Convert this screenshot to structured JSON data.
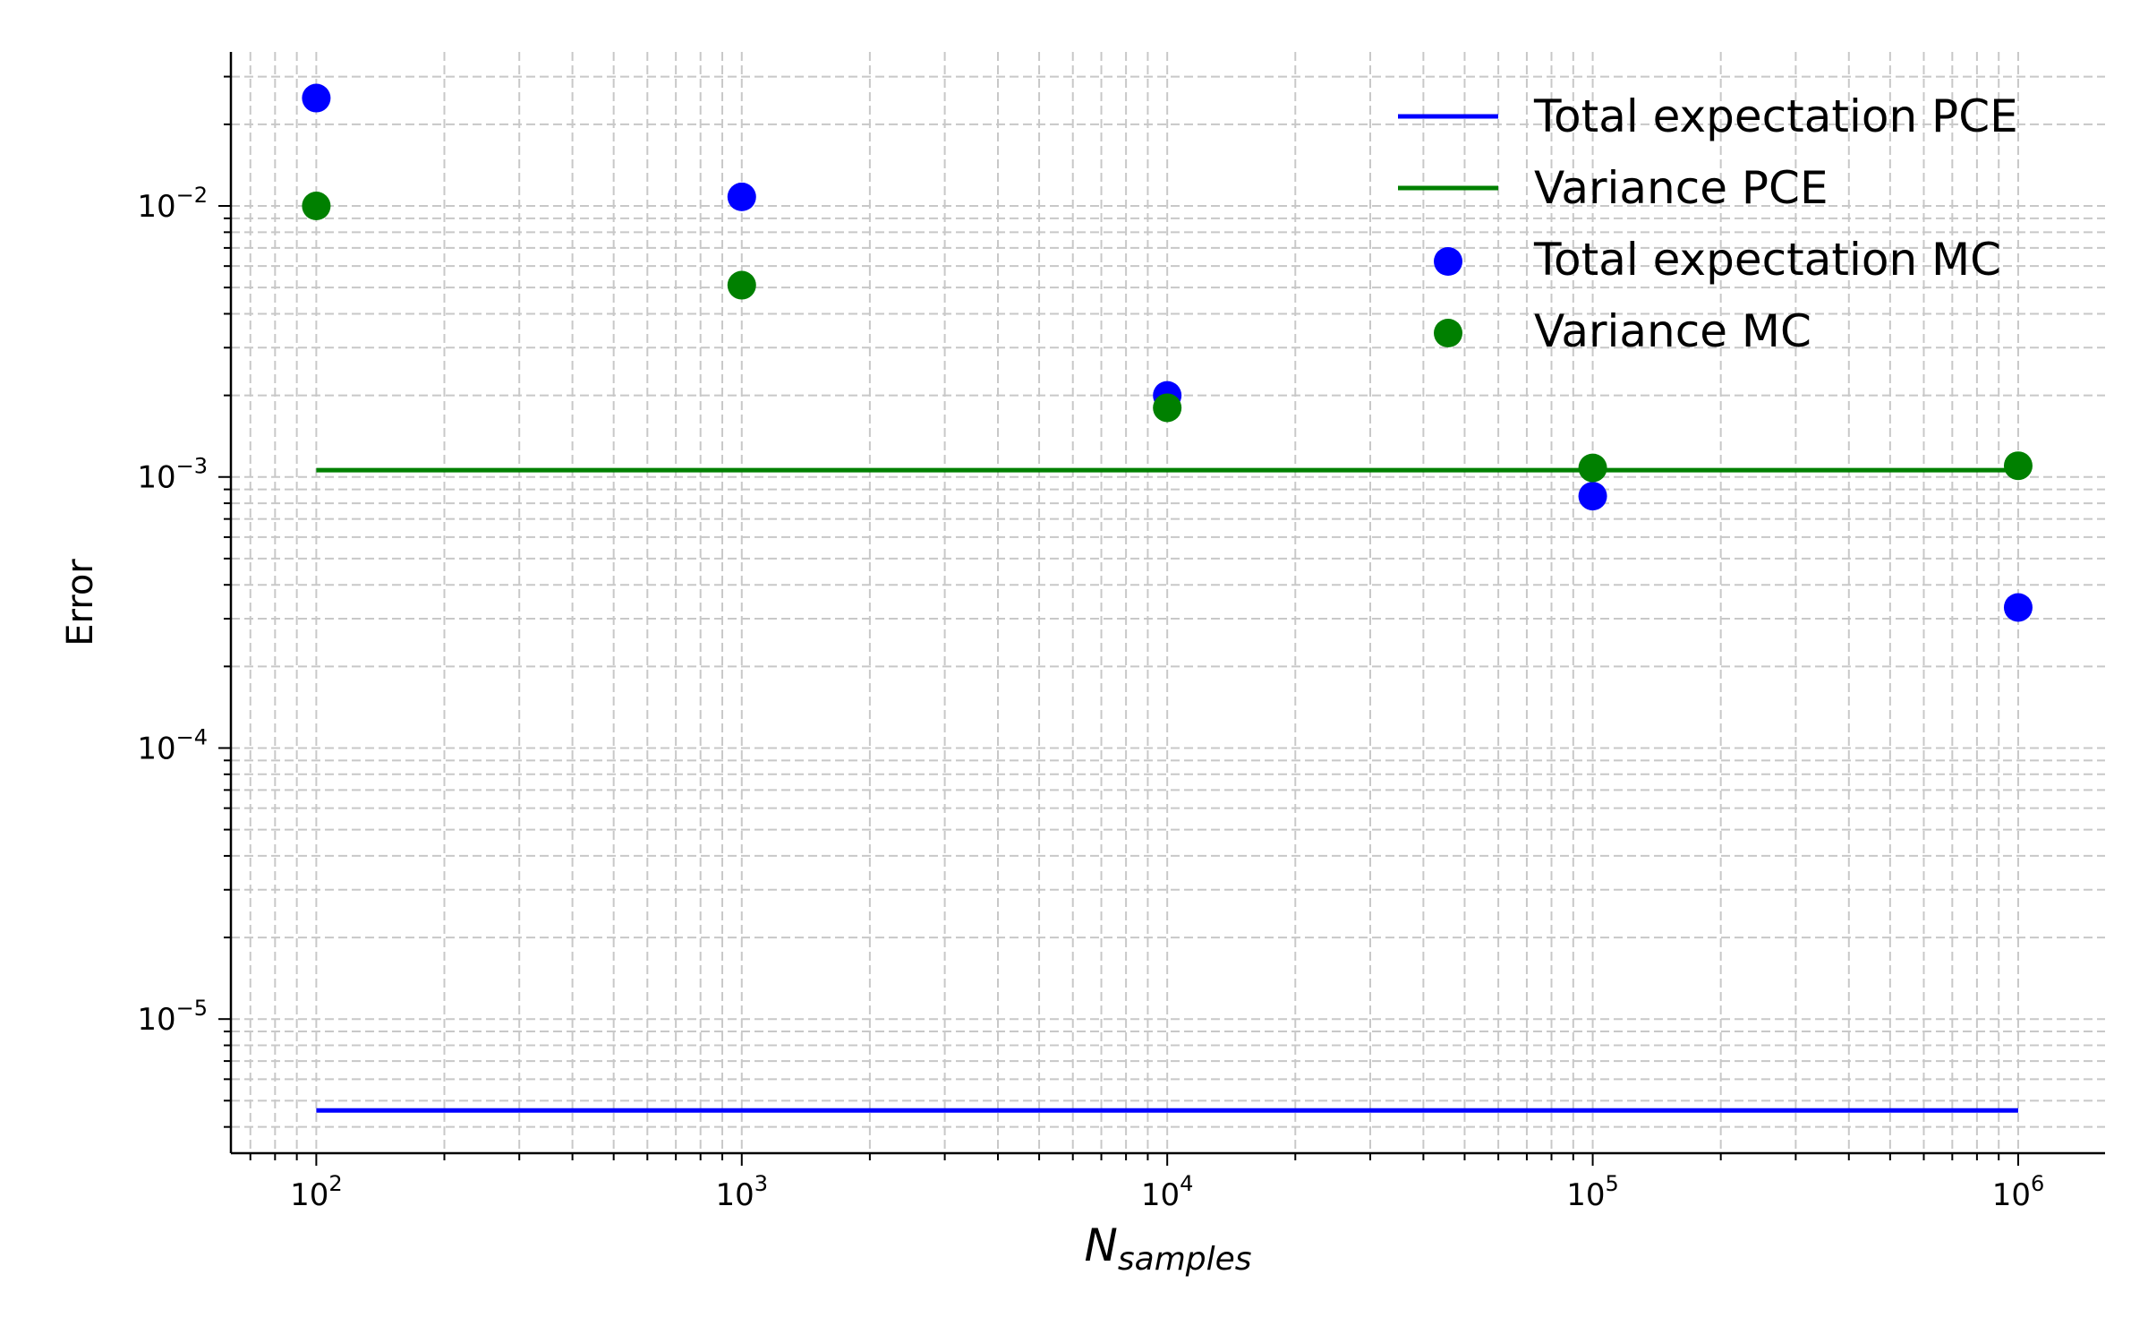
{
  "chart_data": {
    "type": "scatter",
    "title": "",
    "xlabel": "N",
    "xlabel_subscript": "samples",
    "ylabel": "Error",
    "xscale": "log",
    "yscale": "log",
    "xlim": [
      63,
      1600000
    ],
    "ylim": [
      3.2e-06,
      0.037
    ],
    "grid": true,
    "grid_which": "both",
    "legend_position": "top-right",
    "x_ticks": [
      {
        "value": 100,
        "base": "10",
        "exp": "2"
      },
      {
        "value": 1000,
        "base": "10",
        "exp": "3"
      },
      {
        "value": 10000,
        "base": "10",
        "exp": "4"
      },
      {
        "value": 100000,
        "base": "10",
        "exp": "5"
      },
      {
        "value": 1000000,
        "base": "10",
        "exp": "6"
      }
    ],
    "y_ticks": [
      {
        "value": 1e-05,
        "base": "10",
        "exp": "−5"
      },
      {
        "value": 0.0001,
        "base": "10",
        "exp": "−4"
      },
      {
        "value": 0.001,
        "base": "10",
        "exp": "−3"
      },
      {
        "value": 0.01,
        "base": "10",
        "exp": "−2"
      }
    ],
    "series": [
      {
        "name": "Total expectation PCE",
        "kind": "line",
        "color": "#0000ff",
        "x": [
          100,
          1000000
        ],
        "y": [
          4.6e-06,
          4.6e-06
        ]
      },
      {
        "name": "Variance PCE",
        "kind": "line",
        "color": "#008000",
        "x": [
          100,
          1000000
        ],
        "y": [
          0.00106,
          0.00106
        ]
      },
      {
        "name": "Total expectation MC",
        "kind": "scatter",
        "color": "#0000ff",
        "x": [
          100,
          1000,
          10000,
          100000,
          1000000
        ],
        "y": [
          0.025,
          0.0108,
          0.002,
          0.00085,
          0.00033
        ]
      },
      {
        "name": "Variance MC",
        "kind": "scatter",
        "color": "#008000",
        "x": [
          100,
          1000,
          10000,
          100000,
          1000000
        ],
        "y": [
          0.01,
          0.0051,
          0.0018,
          0.00108,
          0.0011
        ]
      }
    ]
  }
}
